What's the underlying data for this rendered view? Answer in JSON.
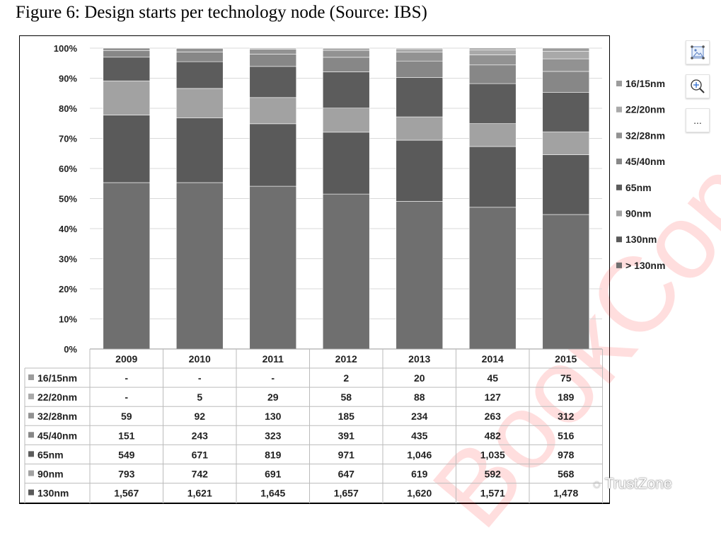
{
  "title": "Figure 6: Design starts per technology node (Source: IBS)",
  "chart_data": {
    "type": "bar",
    "stacked": "percent",
    "categories": [
      "2009",
      "2010",
      "2011",
      "2012",
      "2013",
      "2014",
      "2015"
    ],
    "yticks": [
      "0%",
      "10%",
      "20%",
      "30%",
      "40%",
      "50%",
      "60%",
      "70%",
      "80%",
      "90%",
      "100%"
    ],
    "ylim": [
      0,
      100
    ],
    "legend_position": "right",
    "series": [
      {
        "name": "16/15nm",
        "color": "#9c9c9c",
        "values": [
          "-",
          "-",
          "-",
          "2",
          "20",
          "45",
          "75"
        ]
      },
      {
        "name": "22/20nm",
        "color": "#a9a9a9",
        "values": [
          "-",
          "5",
          "29",
          "58",
          "88",
          "127",
          "189"
        ]
      },
      {
        "name": "32/28nm",
        "color": "#929292",
        "values": [
          "59",
          "92",
          "130",
          "185",
          "234",
          "263",
          "312"
        ]
      },
      {
        "name": "45/40nm",
        "color": "#878787",
        "values": [
          "151",
          "243",
          "323",
          "391",
          "435",
          "482",
          "516"
        ]
      },
      {
        "name": "65nm",
        "color": "#5c5c5c",
        "values": [
          "549",
          "671",
          "819",
          "971",
          "1,046",
          "1,035",
          "978"
        ]
      },
      {
        "name": "90nm",
        "color": "#a2a2a2",
        "values": [
          "793",
          "742",
          "691",
          "647",
          "619",
          "592",
          "568"
        ]
      },
      {
        "name": "130nm",
        "color": "#5a5a5a",
        "values": [
          "1,567",
          "1,621",
          "1,645",
          "1,657",
          "1,620",
          "1,571",
          "1,478"
        ]
      },
      {
        "name": "> 130nm",
        "color": "#6f6f6f",
        "percent_estimate": [
          55.3,
          55.3,
          54.1,
          51.5,
          49.1,
          47.1,
          44.7
        ]
      }
    ]
  },
  "toolbar": {
    "more_label": "..."
  },
  "brand": "TrustZone",
  "watermark": "Book Copy"
}
